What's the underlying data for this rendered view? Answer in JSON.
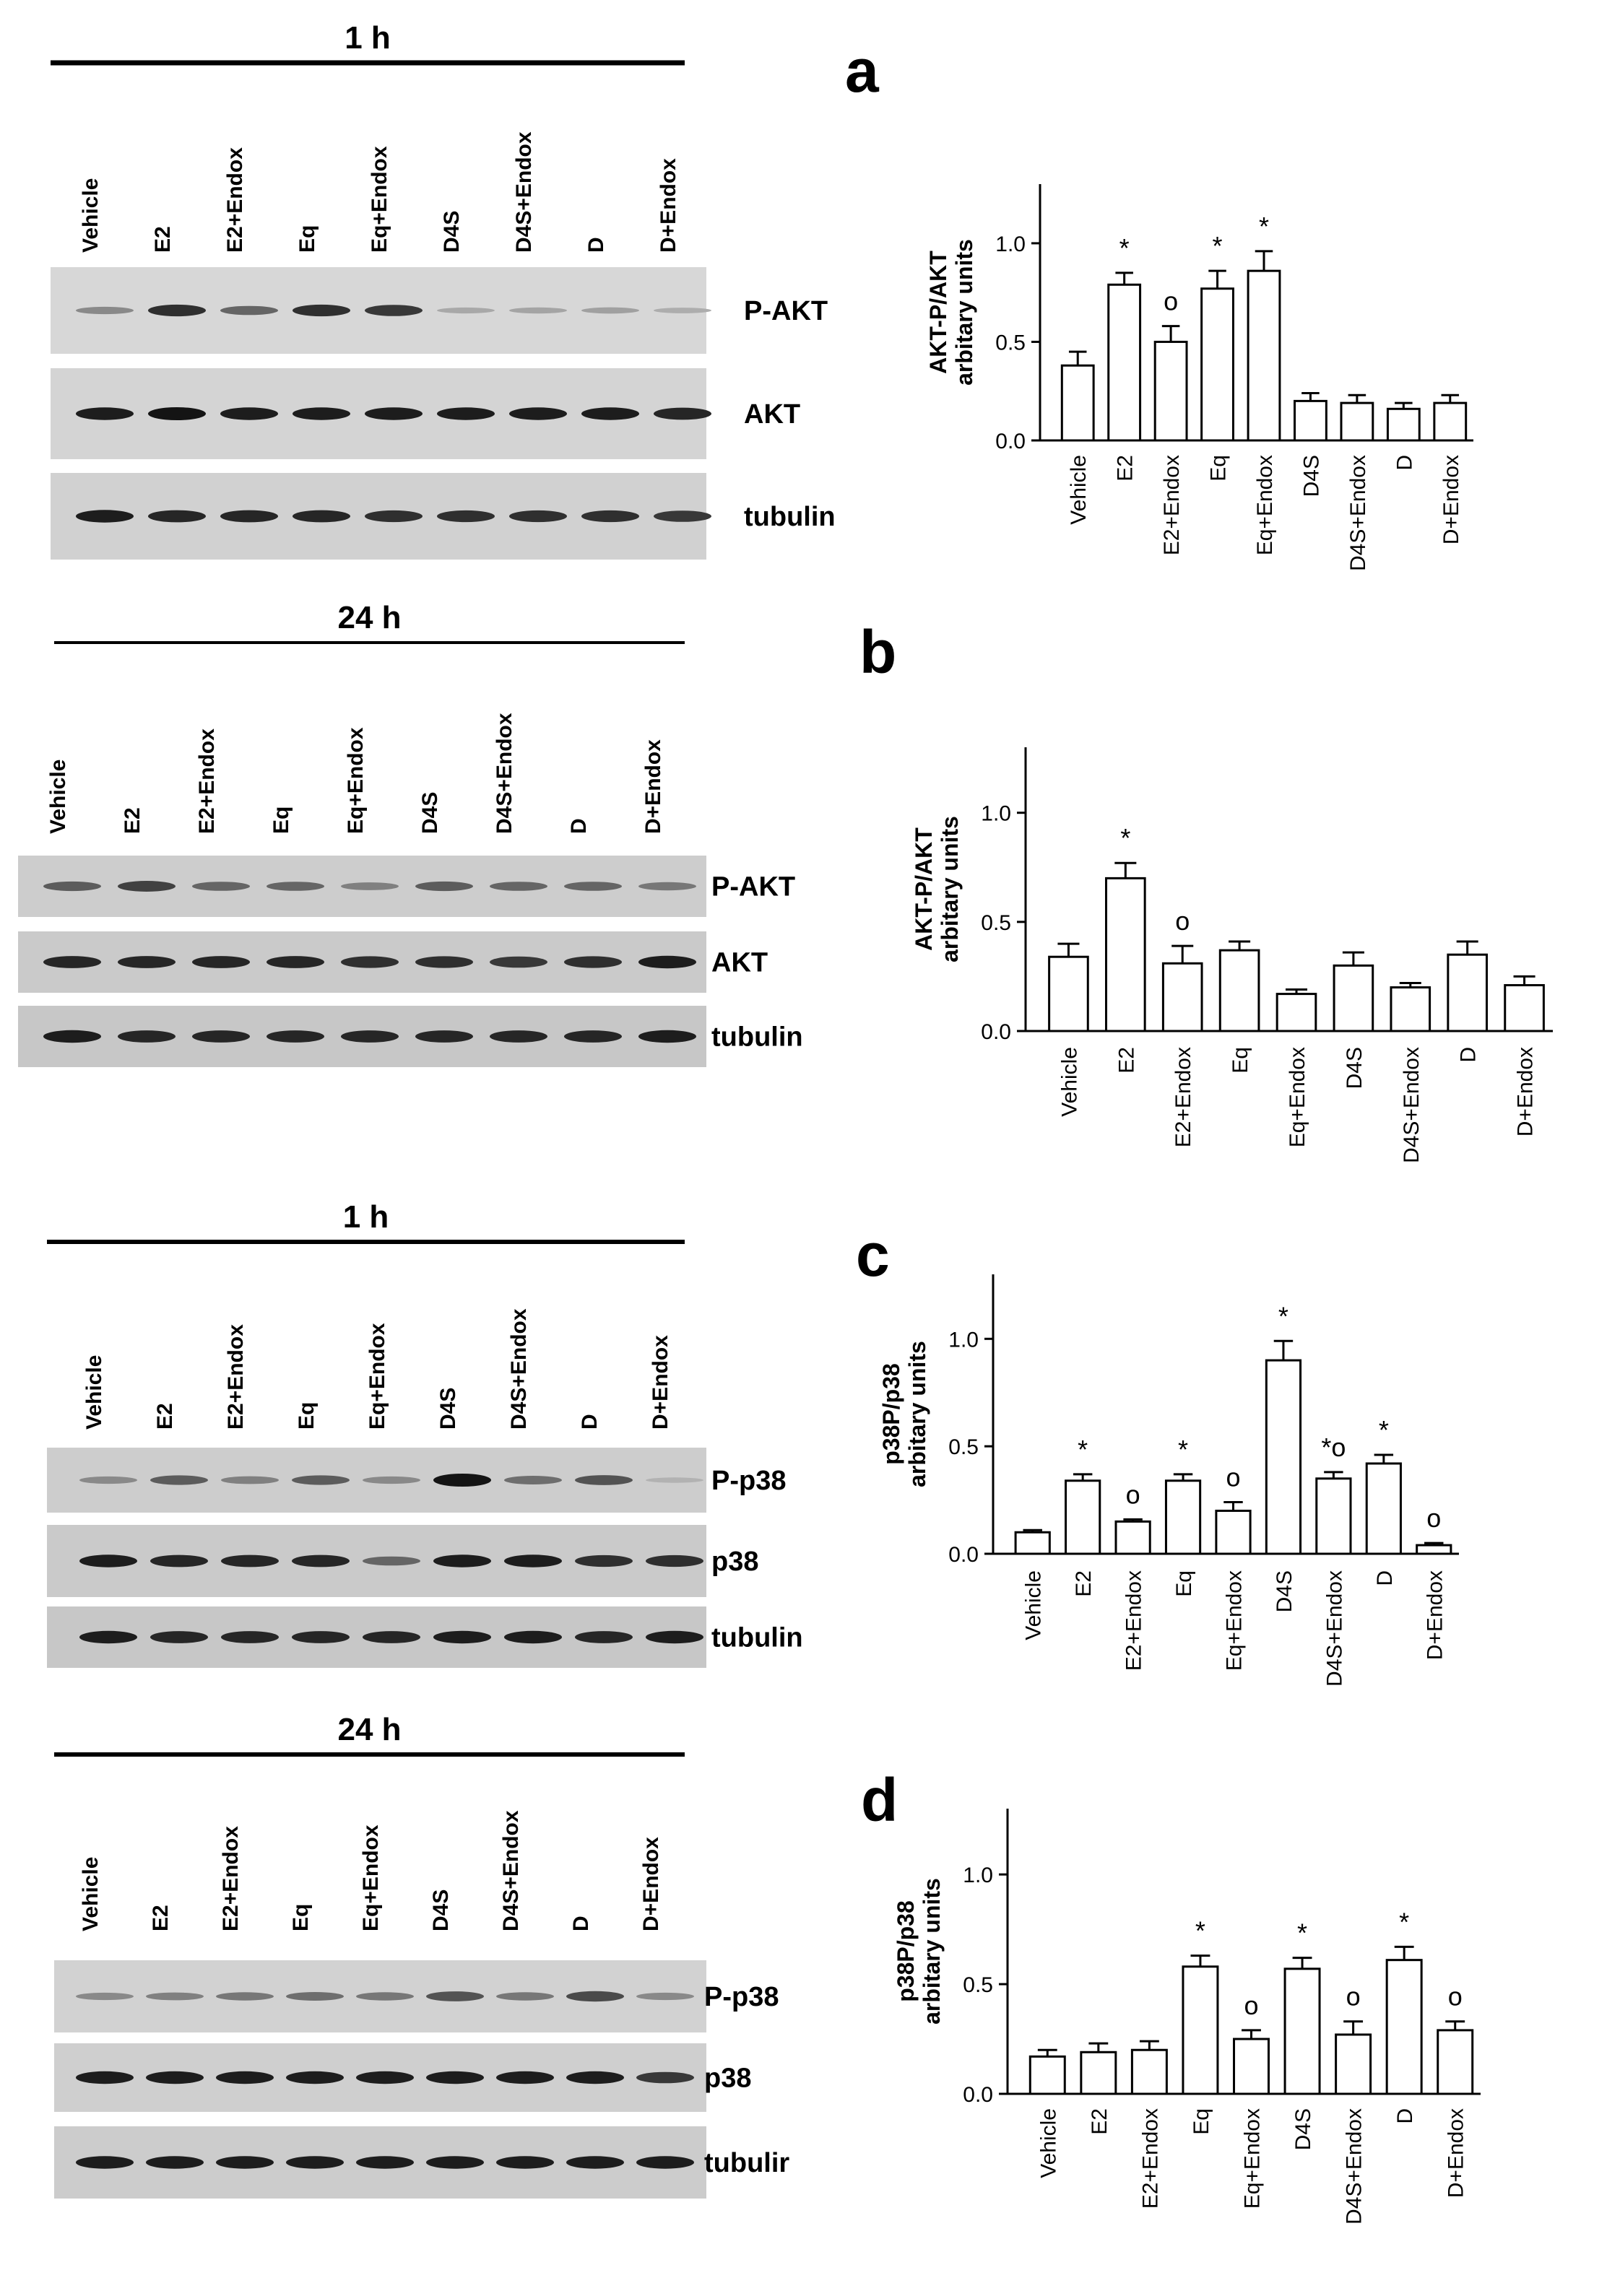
{
  "lanes": [
    "Vehicle",
    "E2",
    "E2+Endox",
    "Eq",
    "Eq+Endox",
    "D4S",
    "D4S+Endox",
    "D",
    "D+Endox"
  ],
  "blots": [
    {
      "id": "akt-1h",
      "time_label": "1 h",
      "row_labels": [
        "P-AKT",
        "AKT",
        "tubulin"
      ],
      "band_intensity": [
        [
          0.35,
          0.85,
          0.55,
          0.85,
          0.8,
          0.18,
          0.2,
          0.22,
          0.15
        ],
        [
          0.95,
          1.0,
          0.95,
          0.95,
          0.95,
          0.95,
          0.95,
          0.95,
          0.9
        ],
        [
          0.95,
          0.9,
          0.9,
          0.9,
          0.85,
          0.85,
          0.85,
          0.85,
          0.8
        ]
      ]
    },
    {
      "id": "akt-24h",
      "time_label": "24 h",
      "row_labels": [
        "P-AKT",
        "AKT",
        "tubulin"
      ],
      "band_intensity": [
        [
          0.6,
          0.75,
          0.55,
          0.55,
          0.4,
          0.6,
          0.55,
          0.55,
          0.45
        ],
        [
          0.9,
          0.9,
          0.9,
          0.9,
          0.85,
          0.85,
          0.8,
          0.85,
          0.95
        ],
        [
          0.95,
          0.9,
          0.9,
          0.9,
          0.9,
          0.9,
          0.9,
          0.9,
          0.95
        ]
      ]
    },
    {
      "id": "p38-1h",
      "time_label": "1 h",
      "row_labels": [
        "P-p38",
        "p38",
        "tubulin"
      ],
      "band_intensity": [
        [
          0.35,
          0.6,
          0.4,
          0.6,
          0.35,
          1.0,
          0.5,
          0.65,
          0.12
        ],
        [
          0.95,
          0.9,
          0.9,
          0.9,
          0.55,
          0.95,
          0.95,
          0.85,
          0.85
        ],
        [
          0.95,
          0.9,
          0.9,
          0.9,
          0.9,
          0.95,
          0.95,
          0.9,
          0.95
        ]
      ]
    },
    {
      "id": "p38-24h",
      "time_label": "24 h",
      "row_labels": [
        "P-p38",
        "p38",
        "tubulir"
      ],
      "band_intensity": [
        [
          0.35,
          0.4,
          0.45,
          0.5,
          0.45,
          0.65,
          0.45,
          0.7,
          0.35
        ],
        [
          0.95,
          0.95,
          0.95,
          0.95,
          0.95,
          0.95,
          0.95,
          0.95,
          0.8
        ],
        [
          0.95,
          0.95,
          0.95,
          0.95,
          0.95,
          0.95,
          0.95,
          0.95,
          0.95
        ]
      ]
    }
  ],
  "chart_data": [
    {
      "panel": "a",
      "type": "bar",
      "ylabel": [
        "AKT-P/AKT",
        "arbitary units"
      ],
      "categories": [
        "Vehicle",
        "E2",
        "E2+Endox",
        "Eq",
        "Eq+Endox",
        "D4S",
        "D4S+Endox",
        "D",
        "D+Endox"
      ],
      "values": [
        0.38,
        0.79,
        0.5,
        0.77,
        0.86,
        0.2,
        0.19,
        0.16,
        0.19
      ],
      "errors": [
        0.07,
        0.06,
        0.08,
        0.09,
        0.1,
        0.04,
        0.04,
        0.03,
        0.04
      ],
      "annotations": [
        "",
        "*",
        "o",
        "*",
        "*",
        "",
        "",
        "",
        ""
      ],
      "ylim": [
        0,
        1.3
      ],
      "yticks": [
        "0.0",
        "0.5",
        "1.0"
      ]
    },
    {
      "panel": "b",
      "type": "bar",
      "ylabel": [
        "AKT-P/AKT",
        "arbitary units"
      ],
      "categories": [
        "Vehicle",
        "E2",
        "E2+Endox",
        "Eq",
        "Eq+Endox",
        "D4S",
        "D4S+Endox",
        "D",
        "D+Endox"
      ],
      "values": [
        0.34,
        0.7,
        0.31,
        0.37,
        0.17,
        0.3,
        0.2,
        0.35,
        0.21
      ],
      "errors": [
        0.06,
        0.07,
        0.08,
        0.04,
        0.02,
        0.06,
        0.02,
        0.06,
        0.04
      ],
      "annotations": [
        "",
        "*",
        "o",
        "",
        "",
        "",
        "",
        "",
        ""
      ],
      "ylim": [
        0,
        1.3
      ],
      "yticks": [
        "0.0",
        "0.5",
        "1.0"
      ]
    },
    {
      "panel": "c",
      "type": "bar",
      "ylabel": [
        "p38P/p38",
        "arbitary units"
      ],
      "categories": [
        "Vehicle",
        "E2",
        "E2+Endox",
        "Eq",
        "Eq+Endox",
        "D4S",
        "D4S+Endox",
        "D",
        "D+Endox"
      ],
      "values": [
        0.1,
        0.34,
        0.15,
        0.34,
        0.2,
        0.9,
        0.35,
        0.42,
        0.04
      ],
      "errors": [
        0.01,
        0.03,
        0.01,
        0.03,
        0.04,
        0.09,
        0.03,
        0.04,
        0.01
      ],
      "annotations": [
        "",
        "*",
        "o",
        "*",
        "o",
        "*",
        "*o",
        "*",
        "o"
      ],
      "ylim": [
        0,
        1.3
      ],
      "yticks": [
        "0.0",
        "0.5",
        "1.0"
      ]
    },
    {
      "panel": "d",
      "type": "bar",
      "ylabel": [
        "p38P/p38",
        "arbitary units"
      ],
      "categories": [
        "Vehicle",
        "E2",
        "E2+Endox",
        "Eq",
        "Eq+Endox",
        "D4S",
        "D4S+Endox",
        "D",
        "D+Endox"
      ],
      "values": [
        0.17,
        0.19,
        0.2,
        0.58,
        0.25,
        0.57,
        0.27,
        0.61,
        0.29
      ],
      "errors": [
        0.03,
        0.04,
        0.04,
        0.05,
        0.04,
        0.05,
        0.06,
        0.06,
        0.04
      ],
      "annotations": [
        "",
        "",
        "",
        "*",
        "o",
        "*",
        "o",
        "*",
        "o"
      ],
      "ylim": [
        0,
        1.3
      ],
      "yticks": [
        "0.0",
        "0.5",
        "1.0"
      ]
    }
  ]
}
